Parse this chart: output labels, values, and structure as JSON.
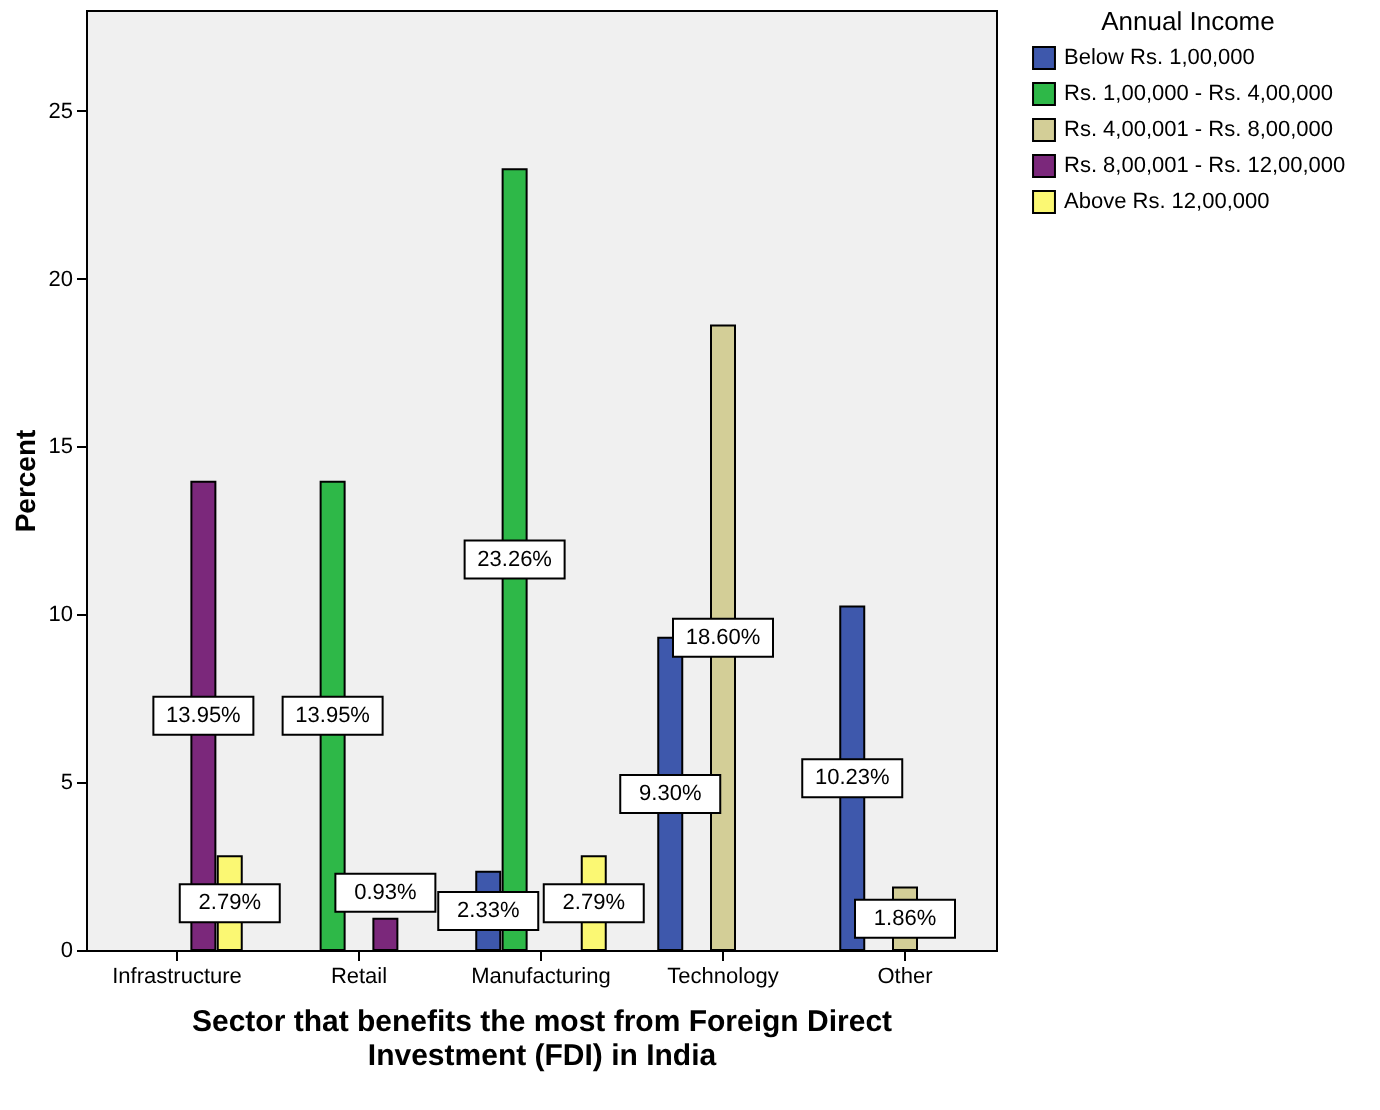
{
  "chart_data": {
    "type": "bar",
    "xlabel": "Sector that benefits the most from Foreign Direct Investment (FDI) in India",
    "ylabel": "Percent",
    "legend_title": "Annual Income",
    "legend": "top right",
    "grid": false,
    "categories": [
      "Infrastructure",
      "Retail",
      "Manufacturing",
      "Technology",
      "Other"
    ],
    "ylim": [
      0,
      28
    ],
    "yticks": [
      0,
      5,
      10,
      15,
      20,
      25
    ],
    "series": [
      {
        "name": "Below Rs. 1,00,000",
        "color": "#3e58ac",
        "values": [
          null,
          null,
          2.33,
          9.3,
          10.23
        ],
        "value_labels": [
          null,
          null,
          "2.33%",
          "9.30%",
          "10.23%"
        ]
      },
      {
        "name": "Rs. 1,00,000 - Rs. 4,00,000",
        "color": "#2eb848",
        "values": [
          null,
          13.95,
          23.26,
          null,
          null
        ],
        "value_labels": [
          null,
          "13.95%",
          "23.26%",
          null,
          null
        ]
      },
      {
        "name": "Rs. 4,00,001 - Rs. 8,00,000",
        "color": "#d3ce97",
        "values": [
          null,
          null,
          null,
          18.6,
          1.86
        ],
        "value_labels": [
          null,
          null,
          null,
          "18.60%",
          "1.86%"
        ]
      },
      {
        "name": "Rs. 8,00,001 - Rs. 12,00,000",
        "color": "#7b287b",
        "values": [
          13.95,
          0.93,
          null,
          null,
          null
        ],
        "value_labels": [
          "13.95%",
          "0.93%",
          null,
          null,
          null
        ]
      },
      {
        "name": "Above Rs. 12,00,000",
        "color": "#fbf873",
        "values": [
          2.79,
          null,
          2.79,
          null,
          null
        ],
        "value_labels": [
          "2.79%",
          null,
          "2.79%",
          null,
          null
        ]
      }
    ]
  }
}
